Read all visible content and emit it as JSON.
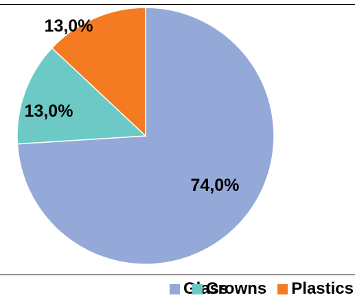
{
  "chart_data": {
    "type": "pie",
    "title": "",
    "series": [
      {
        "values": [
          74.0,
          13.0,
          13.0
        ]
      }
    ],
    "categories": [
      "Glass",
      "Crowns",
      "Plastics"
    ],
    "labels": [
      "74,0%",
      "13,0%",
      "13,0%"
    ],
    "colors": [
      "#95A9D8",
      "#6CC9C5",
      "#F47B22"
    ],
    "start_angle": "12 o'clock, clockwise",
    "legend_position": "bottom"
  },
  "legend": {
    "items": [
      {
        "label": "Glass",
        "color": "#95A9D8"
      },
      {
        "label": "Crowns",
        "color": "#6CC9C5"
      },
      {
        "label": "Plastics",
        "color": "#F47B22"
      }
    ]
  }
}
